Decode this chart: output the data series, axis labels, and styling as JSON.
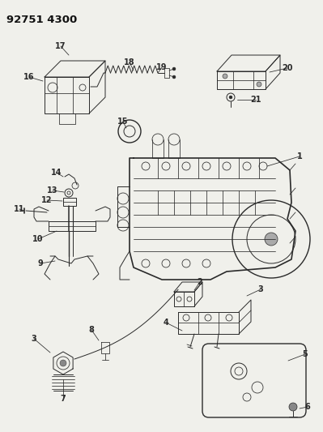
{
  "title": "92751 4300",
  "bg_color": "#f5f5f0",
  "fig_width": 3.99,
  "fig_height": 5.33,
  "dpi": 100,
  "line_color": "#2a2a2a",
  "label_fontsize": 7.0
}
